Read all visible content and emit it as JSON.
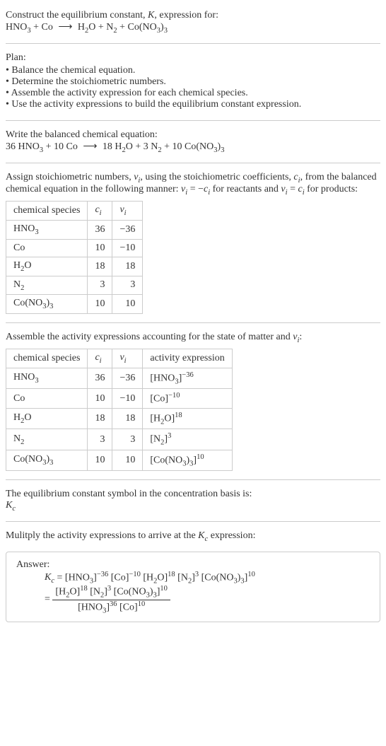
{
  "header": {
    "line1": "Construct the equilibrium constant, <span class='italic'>K</span>, expression for:",
    "line2": "HNO<span class='sub'>3</span> + Co <span class='arrow'>⟶</span> H<span class='sub'>2</span>O + N<span class='sub'>2</span> + Co(NO<span class='sub'>3</span>)<span class='sub'>3</span>"
  },
  "plan": {
    "title": "Plan:",
    "items": [
      "Balance the chemical equation.",
      "Determine the stoichiometric numbers.",
      "Assemble the activity expression for each chemical species.",
      "Use the activity expressions to build the equilibrium constant expression."
    ]
  },
  "balanced": {
    "title": "Write the balanced chemical equation:",
    "eq": "36 HNO<span class='sub'>3</span> + 10 Co <span class='arrow'>⟶</span> 18 H<span class='sub'>2</span>O + 3 N<span class='sub'>2</span> + 10 Co(NO<span class='sub'>3</span>)<span class='sub'>3</span>"
  },
  "stoich": {
    "intro": "Assign stoichiometric numbers, <span class='italic'>ν<span class='sub'>i</span></span>, using the stoichiometric coefficients, <span class='italic'>c<span class='sub'>i</span></span>, from the balanced chemical equation in the following manner: <span class='italic'>ν<span class='sub'>i</span></span> = −<span class='italic'>c<span class='sub'>i</span></span> for reactants and <span class='italic'>ν<span class='sub'>i</span></span> = <span class='italic'>c<span class='sub'>i</span></span> for products:",
    "headers": [
      "chemical species",
      "<span class='italic'>c<span class='sub'>i</span></span>",
      "<span class='italic'>ν<span class='sub'>i</span></span>"
    ],
    "rows": [
      [
        "HNO<span class='sub'>3</span>",
        "36",
        "−36"
      ],
      [
        "Co",
        "10",
        "−10"
      ],
      [
        "H<span class='sub'>2</span>O",
        "18",
        "18"
      ],
      [
        "N<span class='sub'>2</span>",
        "3",
        "3"
      ],
      [
        "Co(NO<span class='sub'>3</span>)<span class='sub'>3</span>",
        "10",
        "10"
      ]
    ]
  },
  "activity": {
    "intro": "Assemble the activity expressions accounting for the state of matter and <span class='italic'>ν<span class='sub'>i</span></span>:",
    "headers": [
      "chemical species",
      "<span class='italic'>c<span class='sub'>i</span></span>",
      "<span class='italic'>ν<span class='sub'>i</span></span>",
      "activity expression"
    ],
    "rows": [
      [
        "HNO<span class='sub'>3</span>",
        "36",
        "−36",
        "[HNO<span class='sub'>3</span>]<span class='sup'>−36</span>"
      ],
      [
        "Co",
        "10",
        "−10",
        "[Co]<span class='sup'>−10</span>"
      ],
      [
        "H<span class='sub'>2</span>O",
        "18",
        "18",
        "[H<span class='sub'>2</span>O]<span class='sup'>18</span>"
      ],
      [
        "N<span class='sub'>2</span>",
        "3",
        "3",
        "[N<span class='sub'>2</span>]<span class='sup'>3</span>"
      ],
      [
        "Co(NO<span class='sub'>3</span>)<span class='sub'>3</span>",
        "10",
        "10",
        "[Co(NO<span class='sub'>3</span>)<span class='sub'>3</span>]<span class='sup'>10</span>"
      ]
    ]
  },
  "symbol": {
    "text": "The equilibrium constant symbol in the concentration basis is:",
    "sym": "<span class='italic'>K<span class='sub'>c</span></span>"
  },
  "multiply": {
    "text": "Mulitply the activity expressions to arrive at the <span class='italic'>K<span class='sub'>c</span></span> expression:"
  },
  "answer": {
    "label": "Answer:",
    "line1": "<span class='italic'>K<span class='sub'>c</span></span> = [HNO<span class='sub'>3</span>]<span class='sup'>−36</span> [Co]<span class='sup'>−10</span> [H<span class='sub'>2</span>O]<span class='sup'>18</span> [N<span class='sub'>2</span>]<span class='sup'>3</span> [Co(NO<span class='sub'>3</span>)<span class='sub'>3</span>]<span class='sup'>10</span>",
    "frac_num": "[H<span class='sub'>2</span>O]<span class='sup'>18</span> [N<span class='sub'>2</span>]<span class='sup'>3</span> [Co(NO<span class='sub'>3</span>)<span class='sub'>3</span>]<span class='sup'>10</span>",
    "frac_den": "[HNO<span class='sub'>3</span>]<span class='sup'>36</span> [Co]<span class='sup'>10</span>"
  }
}
